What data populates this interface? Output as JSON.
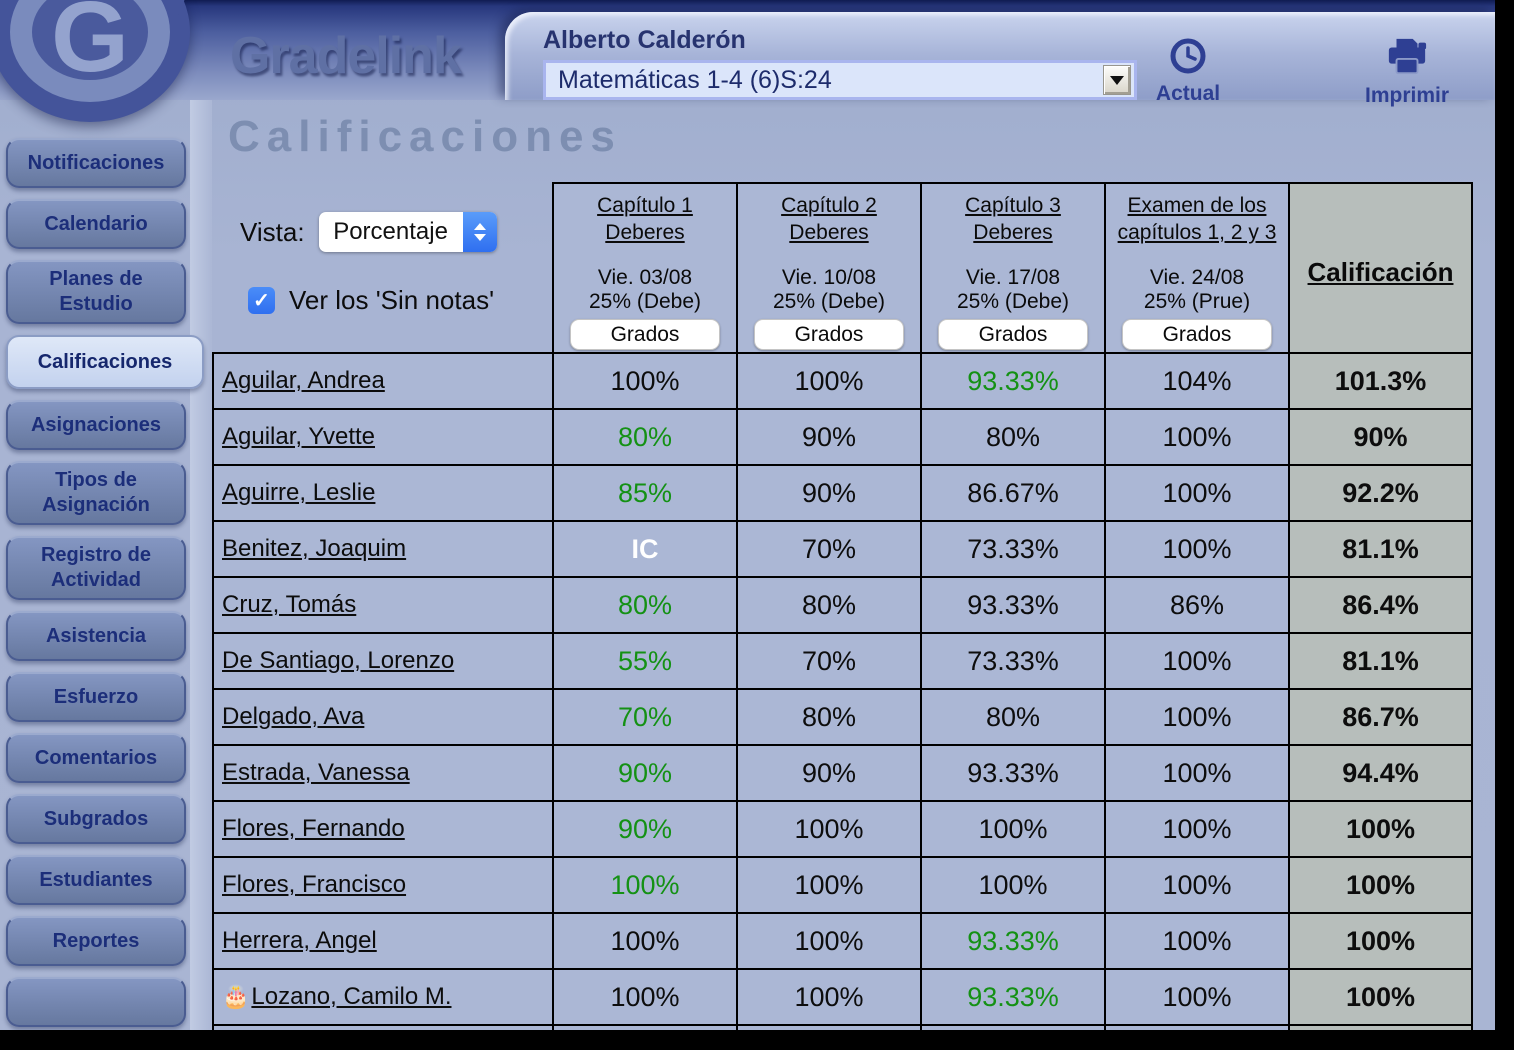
{
  "header": {
    "logo_letter": "G",
    "brand": "Gradelink",
    "teacher_name": "Alberto Calderón",
    "class_selector_value": "Matemáticas 1-4 (6)S:24",
    "actual_label": "Actual",
    "imprimir_label": "Imprimir"
  },
  "sidebar": {
    "items": [
      {
        "label": "Notificaciones",
        "active": false
      },
      {
        "label": "Calendario",
        "active": false
      },
      {
        "label": "Planes de Estudio",
        "active": false
      },
      {
        "label": "Calificaciones",
        "active": true
      },
      {
        "label": "Asignaciones",
        "active": false
      },
      {
        "label": "Tipos de Asignación",
        "active": false
      },
      {
        "label": "Registro de Actividad",
        "active": false
      },
      {
        "label": "Asistencia",
        "active": false
      },
      {
        "label": "Esfuerzo",
        "active": false
      },
      {
        "label": "Comentarios",
        "active": false
      },
      {
        "label": "Subgrados",
        "active": false
      },
      {
        "label": "Estudiantes",
        "active": false
      },
      {
        "label": "Reportes",
        "active": false
      }
    ]
  },
  "main": {
    "page_title": "Calificaciones",
    "vista_label": "Vista:",
    "vista_value": "Porcentaje",
    "show_no_grades_label": "Ver los 'Sin notas'",
    "show_no_grades_checked": true
  },
  "table": {
    "assignment_columns": [
      {
        "title_lines": [
          "Capítulo 1",
          "Deberes"
        ],
        "date": "Vie. 03/08",
        "weight": "25% (Debe)",
        "button_label": "Grados"
      },
      {
        "title_lines": [
          "Capítulo 2",
          "Deberes"
        ],
        "date": "Vie. 10/08",
        "weight": "25% (Debe)",
        "button_label": "Grados"
      },
      {
        "title_lines": [
          "Capítulo 3",
          "Deberes"
        ],
        "date": "Vie. 17/08",
        "weight": "25% (Debe)",
        "button_label": "Grados"
      },
      {
        "title_lines": [
          "Examen de los",
          "capítulos 1, 2 y 3"
        ],
        "date": "Vie. 24/08",
        "weight": "25% (Prue)",
        "button_label": "Grados"
      }
    ],
    "final_column_title": "Calificación",
    "rows": [
      {
        "name": "Aguilar, Andrea",
        "birthday_emoji": "",
        "grades": [
          {
            "value": "100%",
            "color": "black"
          },
          {
            "value": "100%",
            "color": "black"
          },
          {
            "value": "93.33%",
            "color": "green"
          },
          {
            "value": "104%",
            "color": "black"
          }
        ],
        "final": "101.3%"
      },
      {
        "name": "Aguilar, Yvette",
        "birthday_emoji": "",
        "grades": [
          {
            "value": "80%",
            "color": "green"
          },
          {
            "value": "90%",
            "color": "black"
          },
          {
            "value": "80%",
            "color": "black"
          },
          {
            "value": "100%",
            "color": "black"
          }
        ],
        "final": "90%"
      },
      {
        "name": "Aguirre, Leslie",
        "birthday_emoji": "",
        "grades": [
          {
            "value": "85%",
            "color": "green"
          },
          {
            "value": "90%",
            "color": "black"
          },
          {
            "value": "86.67%",
            "color": "black"
          },
          {
            "value": "100%",
            "color": "black"
          }
        ],
        "final": "92.2%"
      },
      {
        "name": "Benitez, Joaquim",
        "birthday_emoji": "",
        "grades": [
          {
            "value": "IC",
            "color": "white"
          },
          {
            "value": "70%",
            "color": "black"
          },
          {
            "value": "73.33%",
            "color": "black"
          },
          {
            "value": "100%",
            "color": "black"
          }
        ],
        "final": "81.1%"
      },
      {
        "name": "Cruz, Tomás",
        "birthday_emoji": "",
        "grades": [
          {
            "value": "80%",
            "color": "green"
          },
          {
            "value": "80%",
            "color": "black"
          },
          {
            "value": "93.33%",
            "color": "black"
          },
          {
            "value": "86%",
            "color": "black"
          }
        ],
        "final": "86.4%"
      },
      {
        "name": "De Santiago, Lorenzo",
        "birthday_emoji": "",
        "grades": [
          {
            "value": "55%",
            "color": "green"
          },
          {
            "value": "70%",
            "color": "black"
          },
          {
            "value": "73.33%",
            "color": "black"
          },
          {
            "value": "100%",
            "color": "black"
          }
        ],
        "final": "81.1%"
      },
      {
        "name": "Delgado, Ava",
        "birthday_emoji": "",
        "grades": [
          {
            "value": "70%",
            "color": "green"
          },
          {
            "value": "80%",
            "color": "black"
          },
          {
            "value": "80%",
            "color": "black"
          },
          {
            "value": "100%",
            "color": "black"
          }
        ],
        "final": "86.7%"
      },
      {
        "name": "Estrada, Vanessa",
        "birthday_emoji": "",
        "grades": [
          {
            "value": "90%",
            "color": "green"
          },
          {
            "value": "90%",
            "color": "black"
          },
          {
            "value": "93.33%",
            "color": "black"
          },
          {
            "value": "100%",
            "color": "black"
          }
        ],
        "final": "94.4%"
      },
      {
        "name": "Flores, Fernando",
        "birthday_emoji": "",
        "grades": [
          {
            "value": "90%",
            "color": "green"
          },
          {
            "value": "100%",
            "color": "black"
          },
          {
            "value": "100%",
            "color": "black"
          },
          {
            "value": "100%",
            "color": "black"
          }
        ],
        "final": "100%"
      },
      {
        "name": "Flores, Francisco",
        "birthday_emoji": "",
        "grades": [
          {
            "value": "100%",
            "color": "green"
          },
          {
            "value": "100%",
            "color": "black"
          },
          {
            "value": "100%",
            "color": "black"
          },
          {
            "value": "100%",
            "color": "black"
          }
        ],
        "final": "100%"
      },
      {
        "name": "Herrera, Angel",
        "birthday_emoji": "",
        "grades": [
          {
            "value": "100%",
            "color": "black"
          },
          {
            "value": "100%",
            "color": "black"
          },
          {
            "value": "93.33%",
            "color": "green"
          },
          {
            "value": "100%",
            "color": "black"
          }
        ],
        "final": "100%"
      },
      {
        "name": "Lozano, Camilo M.",
        "birthday_emoji": "🎂",
        "grades": [
          {
            "value": "100%",
            "color": "black"
          },
          {
            "value": "100%",
            "color": "black"
          },
          {
            "value": "93.33%",
            "color": "green"
          },
          {
            "value": "100%",
            "color": "black"
          }
        ],
        "final": "100%"
      }
    ]
  },
  "colors": {
    "grade_green": "#149114",
    "grade_black": "#0d0d0d",
    "grade_white": "#ffffff",
    "cell_bg": "#abb7d5",
    "final_column_bg": "#b7bebb",
    "navy_accent": "#2e3f93"
  }
}
